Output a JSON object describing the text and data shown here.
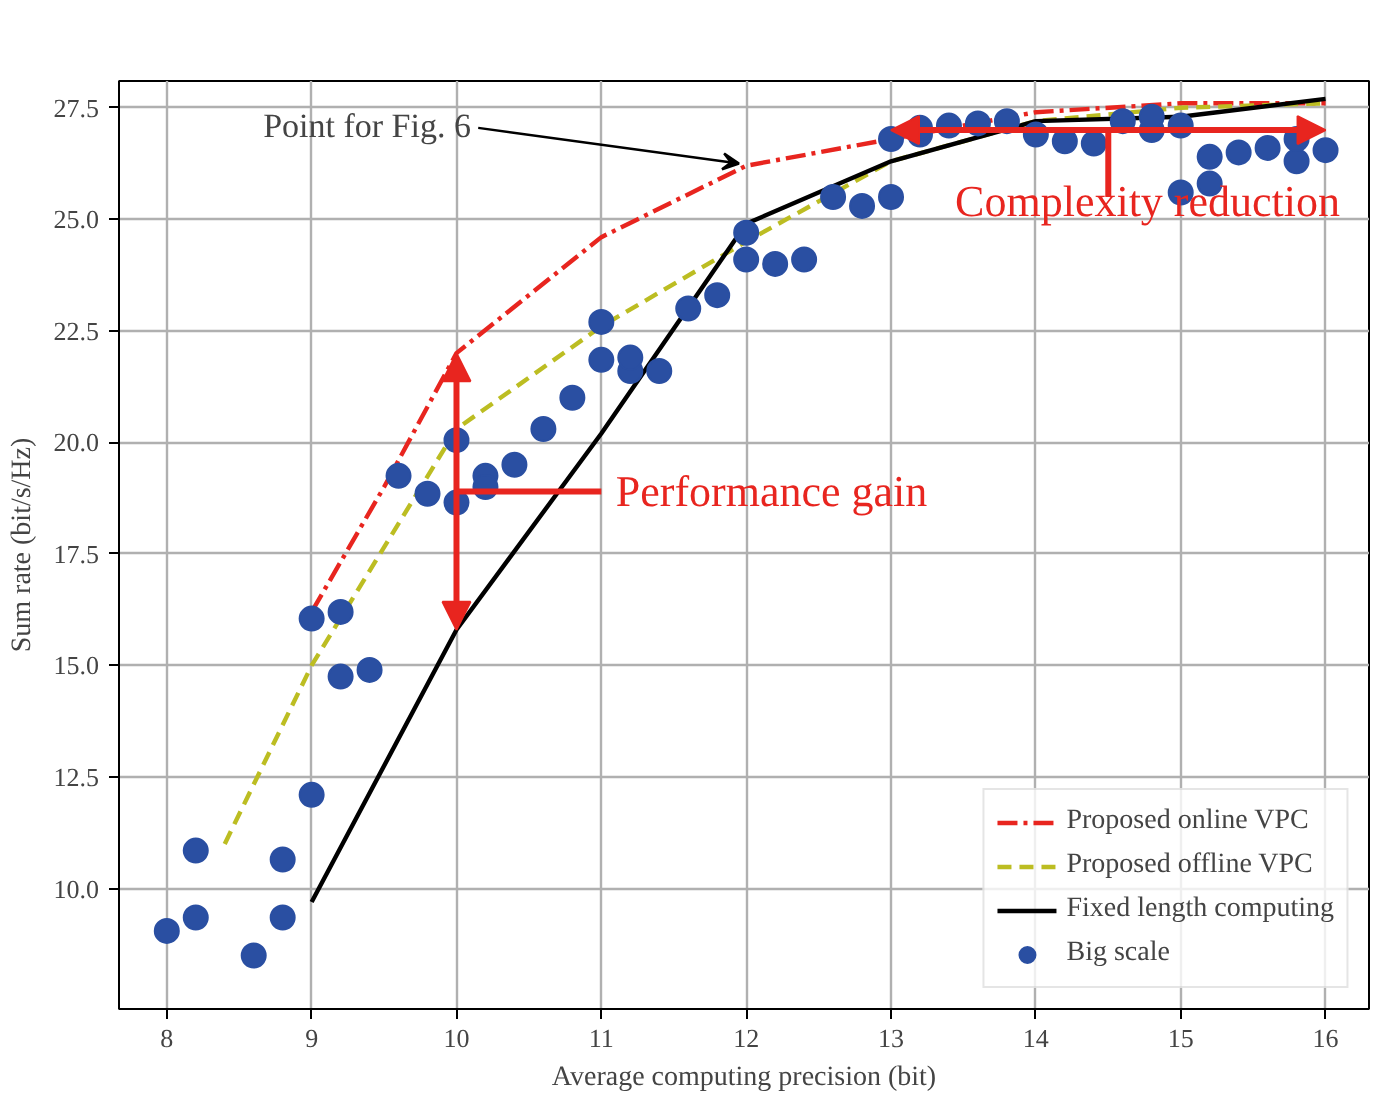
{
  "chart_data": {
    "type": "line",
    "xlabel": "Average computing precision (bit)",
    "ylabel": "Sum rate (bit/s/Hz)",
    "xlim": [
      7.67,
      16.3
    ],
    "ylim": [
      7.3,
      28.1
    ],
    "xticks": [
      8,
      9,
      10,
      11,
      12,
      13,
      14,
      15,
      16
    ],
    "yticks": [
      {
        "value": 10,
        "label": "10.0"
      },
      {
        "value": 12.5,
        "label": "12.5"
      },
      {
        "value": 15,
        "label": "15.0"
      },
      {
        "value": 17.5,
        "label": "17.5"
      },
      {
        "value": 20,
        "label": "20.0"
      },
      {
        "value": 22.5,
        "label": "22.5"
      },
      {
        "value": 25,
        "label": "25.0"
      },
      {
        "value": 27.5,
        "label": "27.5"
      }
    ],
    "grid": true,
    "legend": "bottom right",
    "series": [
      {
        "name": "Proposed online VPC",
        "color": "#e8251f",
        "line_style": "dashdot",
        "x": [
          9,
          9.5,
          10,
          11,
          12,
          13,
          14,
          15,
          16
        ],
        "values": [
          16.2,
          19,
          22,
          24.6,
          26.2,
          26.8,
          27.4,
          27.6,
          27.6
        ]
      },
      {
        "name": "Proposed offline VPC",
        "color": "#bcbd22",
        "line_style": "dashed",
        "x": [
          8.4,
          9,
          10,
          11,
          12,
          13,
          14,
          15,
          16
        ],
        "values": [
          11,
          15,
          20.3,
          22.6,
          24.5,
          26.3,
          27.2,
          27.5,
          27.6
        ]
      },
      {
        "name": "Fixed length computing",
        "color": "#000000",
        "line_style": "solid",
        "x": [
          9,
          10,
          11,
          12,
          13,
          14,
          15,
          16
        ],
        "values": [
          9.7,
          15.8,
          20.2,
          24.9,
          26.3,
          27.2,
          27.3,
          27.7
        ]
      },
      {
        "name": "Big scale",
        "type": "scatter",
        "color": "#2a4fa2",
        "marker": "circle",
        "x": [
          8.0,
          8.2,
          8.2,
          8.6,
          8.8,
          8.8,
          9.0,
          9.0,
          9.2,
          9.2,
          9.4,
          9.6,
          9.8,
          10.0,
          10.0,
          10.2,
          10.2,
          10.4,
          10.6,
          10.8,
          11.0,
          11.0,
          11.2,
          11.2,
          11.4,
          11.6,
          11.8,
          12.0,
          12.0,
          12.2,
          12.4,
          12.6,
          12.8,
          13.0,
          13.0,
          13.2,
          13.2,
          13.4,
          13.6,
          13.8,
          14.0,
          14.2,
          14.4,
          14.6,
          14.8,
          14.8,
          15.0,
          15.0,
          15.2,
          15.2,
          15.4,
          15.6,
          15.8,
          15.8,
          16.0
        ],
        "values": [
          9.05,
          9.35,
          10.85,
          8.5,
          9.35,
          10.65,
          12.1,
          16.05,
          14.75,
          16.2,
          14.9,
          19.25,
          18.85,
          18.65,
          20.05,
          19.25,
          19.0,
          19.5,
          20.3,
          21.0,
          21.85,
          22.7,
          21.6,
          21.9,
          21.6,
          23.0,
          23.3,
          24.1,
          24.7,
          24.0,
          24.1,
          25.5,
          25.3,
          25.5,
          26.8,
          26.9,
          27.05,
          27.1,
          27.15,
          27.2,
          26.9,
          26.75,
          26.7,
          27.2,
          27.0,
          27.3,
          25.6,
          27.1,
          25.8,
          26.4,
          26.5,
          26.6,
          26.3,
          26.8,
          26.55
        ]
      }
    ],
    "annotations": [
      {
        "text": "Point for Fig. 6",
        "x": 12,
        "y": 26.2
      },
      "Performance gain",
      {
        "text": "Complexity reduction",
        "x": 14.5,
        "y": 27
      }
    ]
  }
}
